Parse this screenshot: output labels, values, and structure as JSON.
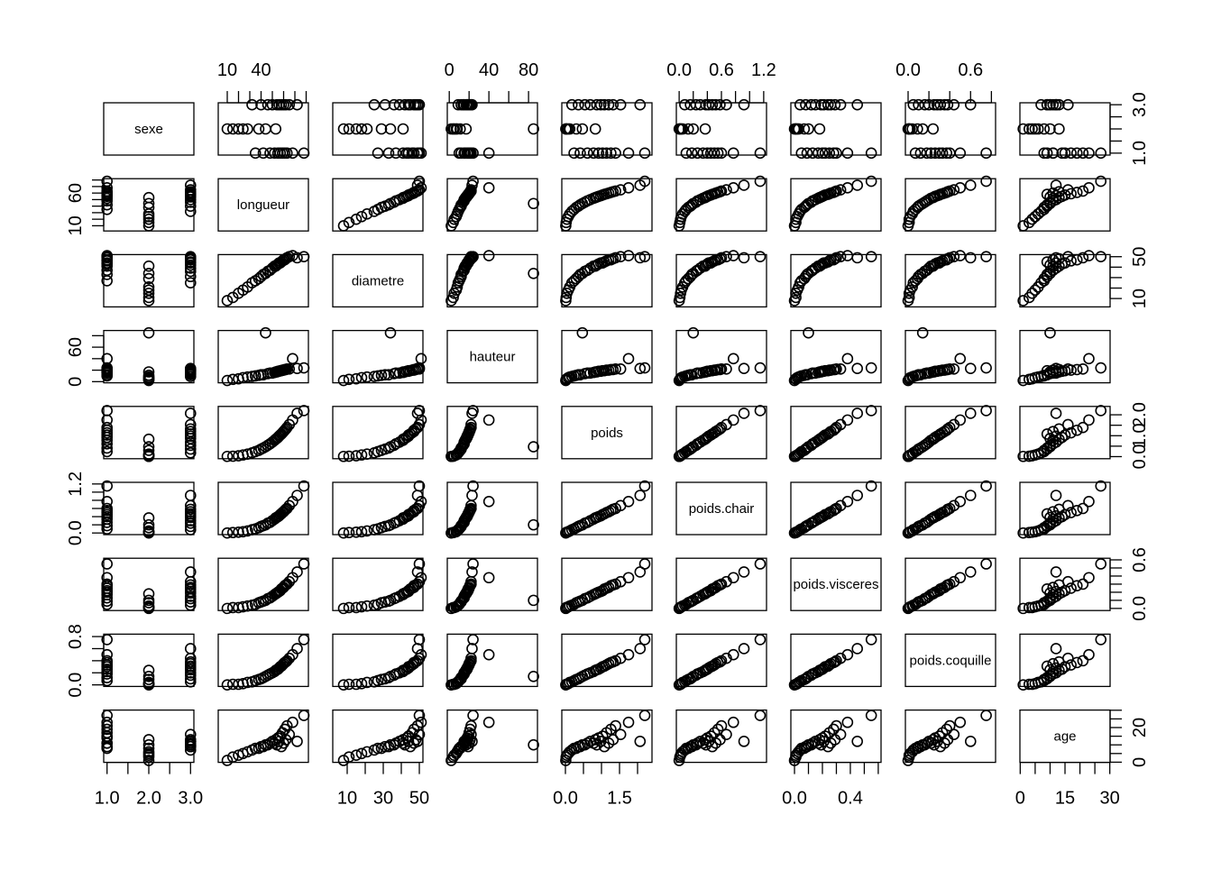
{
  "chart_data": {
    "type": "scatter_matrix",
    "point_color": "#000000",
    "variables": [
      {
        "name": "sexe",
        "lim": [
          0.92,
          3.08
        ],
        "ticks": [
          1,
          1.5,
          2,
          2.5,
          3
        ],
        "x_tick_labels": [
          {
            "value": 1,
            "label": "1.0"
          },
          {
            "value": 2,
            "label": "2.0"
          },
          {
            "value": 3,
            "label": "3.0"
          }
        ],
        "y_tick_labels": [
          {
            "value": 1,
            "label": "1.0"
          },
          {
            "value": 3,
            "label": "3.0"
          }
        ],
        "values": [
          2,
          2,
          2,
          2,
          2,
          3,
          1,
          2,
          3,
          1,
          2,
          3,
          1,
          3,
          1,
          2,
          3,
          1,
          3,
          1,
          3,
          1,
          3,
          1,
          3,
          1,
          3,
          1,
          3,
          1
        ]
      },
      {
        "name": "longueur",
        "lim": [
          2,
          82
        ],
        "ticks": [
          10,
          20,
          30,
          40,
          50,
          60,
          70,
          80
        ],
        "x_tick_labels": [
          10,
          40
        ],
        "y_tick_labels": [
          10,
          60
        ],
        "values": [
          10,
          15,
          20,
          24,
          28,
          32,
          35,
          38,
          40,
          42,
          44,
          46,
          48,
          50,
          52,
          53,
          54,
          55,
          56,
          57,
          58,
          59,
          60,
          61,
          62,
          63,
          65,
          68,
          72,
          78
        ]
      },
      {
        "name": "diametre",
        "lim": [
          2,
          52
        ],
        "ticks": [
          10,
          20,
          30,
          40,
          50
        ],
        "x_tick_labels": [
          10,
          30,
          50
        ],
        "y_tick_labels": [
          10,
          50
        ],
        "values": [
          8,
          11,
          15,
          18,
          21,
          25,
          27,
          29,
          31,
          33,
          34,
          36,
          37,
          39,
          41,
          41,
          42,
          43,
          44,
          44,
          45,
          46,
          47,
          47,
          48,
          49,
          50,
          51,
          49,
          50
        ]
      },
      {
        "name": "hauteur",
        "lim": [
          -2,
          89
        ],
        "ticks": [
          0,
          20,
          40,
          60,
          80
        ],
        "x_tick_labels": [
          0,
          40,
          80
        ],
        "y_tick_labels": [
          0,
          60
        ],
        "values": [
          2,
          4,
          5,
          7,
          8,
          9,
          10,
          11,
          12,
          12,
          85,
          14,
          15,
          15,
          16,
          17,
          17,
          18,
          18,
          19,
          19,
          20,
          20,
          21,
          21,
          22,
          22,
          40,
          23,
          24
        ]
      },
      {
        "name": "poids",
        "lim": [
          -0.1,
          2.4
        ],
        "ticks": [
          0,
          0.5,
          1,
          1.5,
          2
        ],
        "x_tick_labels": [
          {
            "value": 0,
            "label": "0.0"
          },
          1.5
        ],
        "y_tick_labels": [
          {
            "value": 0,
            "label": "0.0"
          },
          {
            "value": 1,
            "label": "1.0"
          },
          {
            "value": 2,
            "label": "2.0"
          }
        ],
        "values": [
          0.01,
          0.02,
          0.04,
          0.08,
          0.12,
          0.18,
          0.24,
          0.3,
          0.36,
          0.41,
          0.47,
          0.54,
          0.61,
          0.69,
          0.78,
          0.83,
          0.87,
          0.92,
          0.98,
          1.03,
          1.08,
          1.14,
          1.2,
          1.26,
          1.32,
          1.39,
          1.53,
          1.75,
          2.07,
          2.2
        ]
      },
      {
        "name": "poids.chair",
        "lim": [
          -0.04,
          1.24
        ],
        "ticks": [
          0,
          0.2,
          0.4,
          0.6,
          0.8,
          1,
          1.2
        ],
        "x_tick_labels": [
          {
            "value": 0,
            "label": "0.0"
          },
          0.6,
          1.2
        ],
        "y_tick_labels": [
          {
            "value": 0,
            "label": "0.0"
          },
          1.2
        ],
        "values": [
          0,
          0.01,
          0.02,
          0.03,
          0.05,
          0.08,
          0.1,
          0.13,
          0.16,
          0.18,
          0.2,
          0.24,
          0.26,
          0.3,
          0.34,
          0.37,
          0.38,
          0.4,
          0.42,
          0.45,
          0.47,
          0.5,
          0.52,
          0.55,
          0.58,
          0.6,
          0.67,
          0.77,
          0.92,
          1.15
        ]
      },
      {
        "name": "poids.visceres",
        "lim": [
          -0.026,
          0.62
        ],
        "ticks": [
          0,
          0.1,
          0.2,
          0.3,
          0.4,
          0.5,
          0.6
        ],
        "x_tick_labels": [
          {
            "value": 0,
            "label": "0.0"
          },
          0.4
        ],
        "y_tick_labels": [
          {
            "value": 0,
            "label": "0.0"
          },
          0.6
        ],
        "values": [
          0,
          0.01,
          0.01,
          0.02,
          0.03,
          0.04,
          0.05,
          0.07,
          0.08,
          0.09,
          0.1,
          0.12,
          0.13,
          0.15,
          0.17,
          0.18,
          0.19,
          0.2,
          0.21,
          0.22,
          0.24,
          0.25,
          0.26,
          0.28,
          0.29,
          0.3,
          0.33,
          0.38,
          0.45,
          0.55
        ]
      },
      {
        "name": "poids.coquille",
        "lim": [
          -0.026,
          0.84
        ],
        "ticks": [
          0,
          0.2,
          0.4,
          0.6,
          0.8
        ],
        "x_tick_labels": [
          {
            "value": 0,
            "label": "0.0"
          },
          0.6
        ],
        "y_tick_labels": [
          {
            "value": 0,
            "label": "0.0"
          },
          0.8
        ],
        "values": [
          0,
          0.01,
          0.01,
          0.02,
          0.04,
          0.05,
          0.07,
          0.09,
          0.1,
          0.12,
          0.14,
          0.16,
          0.18,
          0.2,
          0.22,
          0.24,
          0.25,
          0.26,
          0.28,
          0.3,
          0.31,
          0.33,
          0.35,
          0.37,
          0.38,
          0.4,
          0.44,
          0.5,
          0.6,
          0.75
        ]
      },
      {
        "name": "age",
        "lim": [
          -0.1,
          30.1
        ],
        "ticks": [
          0,
          5,
          10,
          15,
          20,
          25,
          30
        ],
        "x_tick_labels": [
          0,
          15,
          30
        ],
        "y_tick_labels": [
          0,
          20
        ],
        "values": [
          1,
          3,
          4,
          5,
          6,
          7,
          8,
          8,
          9,
          9,
          10,
          10,
          11,
          12,
          11,
          13,
          10,
          14,
          12,
          15,
          9,
          17,
          11,
          19,
          13,
          21,
          16,
          23,
          12,
          27
        ]
      }
    ]
  }
}
